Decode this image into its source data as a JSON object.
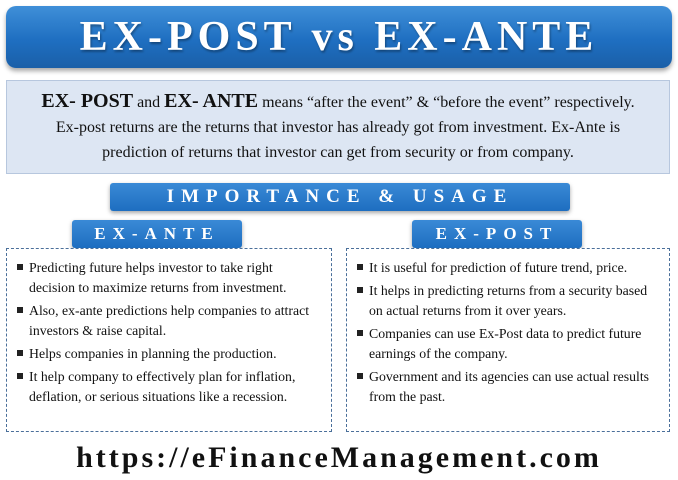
{
  "title": "EX-POST vs EX-ANTE",
  "intro": {
    "term1": "EX- POST",
    "and": "and",
    "term2": "EX- ANTE",
    "line1_rest": "means “after the event” & “before the event” respectively.",
    "line2": "Ex-post returns are the returns that investor has already got from investment. Ex-Ante is",
    "line3": "prediction of returns that investor can get from security or from company."
  },
  "section_title": "IMPORTANCE & USAGE",
  "ex_ante": {
    "heading": "EX-ANTE",
    "items": [
      "Predicting future helps investor to take right decision to maximize returns from investment.",
      "Also, ex-ante predictions help companies to attract investors & raise capital.",
      "Helps companies in planning the production.",
      "It help company to effectively plan for inflation, deflation, or serious situations like a recession."
    ]
  },
  "ex_post": {
    "heading": "EX-POST",
    "items": [
      "It is useful for prediction of future trend, price.",
      "It helps in predicting returns from a security based on actual returns from it over years.",
      "Companies can use Ex-Post data to predict future earnings of the company.",
      "Government and its agencies can use actual results from the past."
    ]
  },
  "footer_url": "https://eFinanceManagement.com",
  "colors": {
    "banner_blue": "#1f6fc1",
    "intro_bg": "#dde6f3",
    "panel_border": "#4a6f9a"
  }
}
